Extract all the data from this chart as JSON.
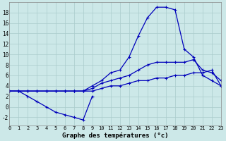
{
  "title": "Graphe des températures (°c)",
  "background_color": "#cce8e8",
  "grid_color": "#aacccc",
  "line_color": "#0000bb",
  "x_labels": [
    "0",
    "1",
    "2",
    "3",
    "4",
    "5",
    "6",
    "7",
    "8",
    "9",
    "10",
    "11",
    "12",
    "13",
    "14",
    "15",
    "16",
    "17",
    "18",
    "19",
    "20",
    "21",
    "22",
    "23"
  ],
  "y_ticks": [
    -2,
    0,
    2,
    4,
    6,
    8,
    10,
    12,
    14,
    16,
    18
  ],
  "ylim": [
    -3.5,
    20
  ],
  "xlim": [
    0,
    23
  ],
  "series": {
    "dip": {
      "x": [
        0,
        1,
        2,
        3,
        4,
        5,
        6,
        7,
        8,
        9
      ],
      "y": [
        3,
        3,
        2,
        1,
        0,
        -1,
        -1.5,
        -2,
        -2.5,
        2
      ]
    },
    "big_curve": [
      3,
      3,
      3,
      3,
      3,
      3,
      3,
      3,
      3,
      4,
      5,
      6.5,
      7,
      9.5,
      13.5,
      17,
      19,
      19,
      18.5,
      11,
      9.5,
      6,
      5,
      4
    ],
    "mid_curve": [
      3,
      3,
      3,
      3,
      3,
      3,
      3,
      3,
      3,
      3.5,
      4.5,
      5,
      5.5,
      6,
      7,
      8,
      8.5,
      8.5,
      8.5,
      8.5,
      9,
      7,
      6.5,
      5
    ],
    "low_curve": [
      3,
      3,
      3,
      3,
      3,
      3,
      3,
      3,
      3,
      3,
      3.5,
      4,
      4,
      4.5,
      5,
      5,
      5.5,
      5.5,
      6,
      6,
      6.5,
      6.5,
      7,
      4
    ]
  }
}
